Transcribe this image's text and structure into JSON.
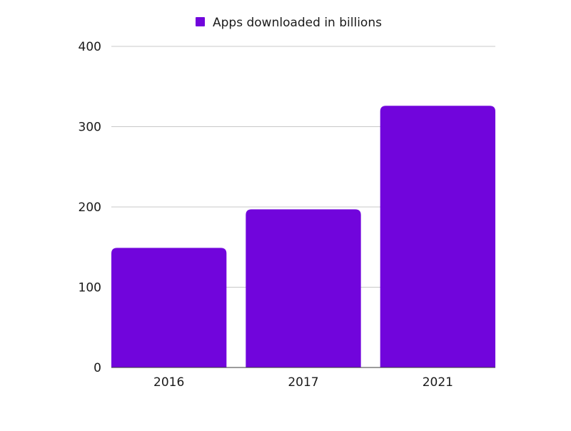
{
  "chart_data": {
    "type": "bar",
    "title": "",
    "xlabel": "",
    "ylabel": "",
    "categories": [
      "2016",
      "2017",
      "2021"
    ],
    "series": [
      {
        "name": "Apps downloaded in billions",
        "color": "#7105DC",
        "values": [
          149,
          197,
          326
        ]
      }
    ],
    "ylim": [
      0,
      400
    ],
    "yticks": [
      0,
      100,
      200,
      300,
      400
    ],
    "grid": true,
    "legend_position": "top-center"
  }
}
